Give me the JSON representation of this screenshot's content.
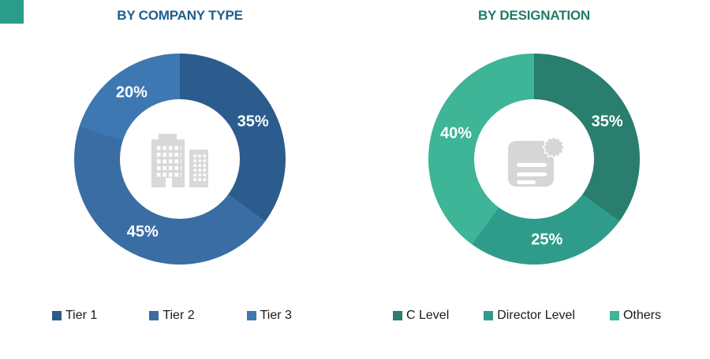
{
  "accents": {
    "corner_color": "#2a9d8a"
  },
  "legend_text_color": "#1a1a1a",
  "chart_data": [
    {
      "type": "pie",
      "donut": true,
      "title": "BY COMPANY TYPE",
      "title_color": "#1e5e8e",
      "categories": [
        "Tier 1",
        "Tier 2",
        "Tier 3"
      ],
      "values": [
        35,
        45,
        20
      ],
      "value_labels": [
        "35%",
        "45%",
        "20%"
      ],
      "colors": [
        "#2b5c8d",
        "#3a6da4",
        "#3e78b2"
      ],
      "label_color": "#ffffff",
      "start_angle_deg": 0,
      "direction": "clockwise",
      "legend_position": "bottom",
      "center_icon": "buildings-icon"
    },
    {
      "type": "pie",
      "donut": true,
      "title": "BY DESIGNATION",
      "title_color": "#217a68",
      "categories": [
        "C Level",
        "Director Level",
        "Others"
      ],
      "values": [
        35,
        25,
        40
      ],
      "value_labels": [
        "35%",
        "25%",
        "40%"
      ],
      "colors": [
        "#297e6e",
        "#2f9c8b",
        "#3db596"
      ],
      "label_color": "#ffffff",
      "start_angle_deg": 0,
      "direction": "clockwise",
      "legend_position": "bottom",
      "center_icon": "document-seal-icon"
    }
  ]
}
